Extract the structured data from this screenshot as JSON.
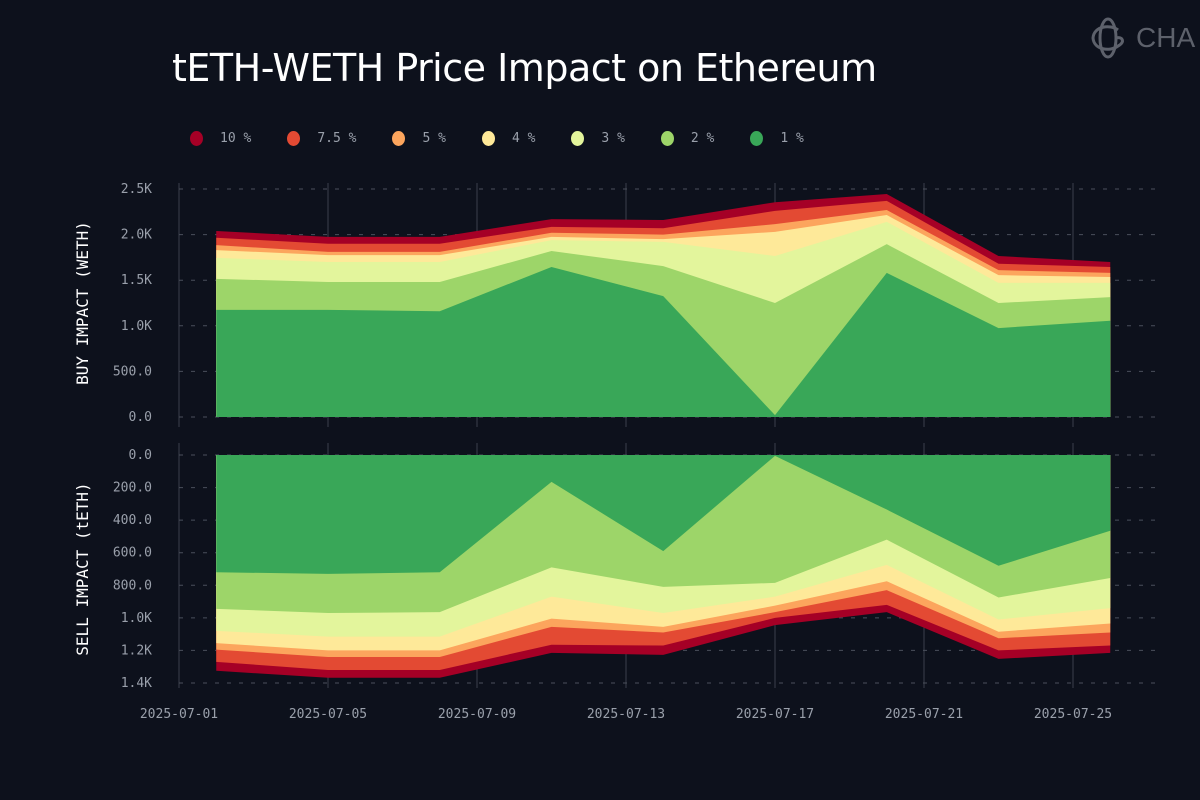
{
  "title": "tETH-WETH Price Impact on Ethereum",
  "logo_text": "CHAOS",
  "chart_data": [
    {
      "type": "area",
      "stacked": true,
      "ylabel": "BUY IMPACT (WETH)",
      "ylim": [
        0,
        2500
      ],
      "yticks": [
        "0.0",
        "500.0",
        "1.0K",
        "1.5K",
        "2.0K",
        "2.5K"
      ],
      "ytick_values": [
        0,
        500,
        1000,
        1500,
        2000,
        2500
      ],
      "x": [
        "2025-07-02",
        "2025-07-05",
        "2025-07-08",
        "2025-07-11",
        "2025-07-14",
        "2025-07-17",
        "2025-07-20",
        "2025-07-23",
        "2025-07-26"
      ],
      "value_note_cumulative": true,
      "series": [
        {
          "name": "1 %",
          "color": "#39a758",
          "values": [
            1175,
            1175,
            1160,
            1645,
            1325,
            20,
            1580,
            975,
            1055
          ]
        },
        {
          "name": "2 %",
          "color": "#9dd569",
          "values": [
            1515,
            1480,
            1480,
            1820,
            1655,
            1250,
            1895,
            1250,
            1315
          ]
        },
        {
          "name": "3 %",
          "color": "#e3f59c",
          "values": [
            1745,
            1700,
            1700,
            1940,
            1920,
            1765,
            2140,
            1470,
            1470
          ]
        },
        {
          "name": "4 %",
          "color": "#fee999",
          "values": [
            1830,
            1775,
            1775,
            1975,
            1950,
            2030,
            2215,
            1555,
            1535
          ]
        },
        {
          "name": "5 %",
          "color": "#fca55d",
          "values": [
            1885,
            1810,
            1810,
            2020,
            2000,
            2115,
            2270,
            1610,
            1580
          ]
        },
        {
          "name": "7.5 %",
          "color": "#e34a33",
          "values": [
            1965,
            1900,
            1900,
            2085,
            2070,
            2260,
            2370,
            1680,
            1645
          ]
        },
        {
          "name": "10 %",
          "color": "#a50026",
          "values": [
            2040,
            1975,
            1975,
            2170,
            2160,
            2355,
            2445,
            1765,
            1700
          ]
        }
      ],
      "grid": true
    },
    {
      "type": "area",
      "stacked": true,
      "inverted_y": true,
      "ylabel": "SELL IMPACT (tETH)",
      "ylim": [
        0,
        1400
      ],
      "yticks": [
        "0.0",
        "200.0",
        "400.0",
        "600.0",
        "800.0",
        "1.0K",
        "1.2K",
        "1.4K"
      ],
      "ytick_values": [
        0,
        200,
        400,
        600,
        800,
        1000,
        1200,
        1400
      ],
      "x": [
        "2025-07-02",
        "2025-07-05",
        "2025-07-08",
        "2025-07-11",
        "2025-07-14",
        "2025-07-17",
        "2025-07-20",
        "2025-07-23",
        "2025-07-26"
      ],
      "series": [
        {
          "name": "1 %",
          "color": "#39a758",
          "values": [
            720,
            730,
            720,
            165,
            590,
            5,
            335,
            680,
            465
          ]
        },
        {
          "name": "2 %",
          "color": "#9dd569",
          "values": [
            945,
            970,
            965,
            690,
            810,
            785,
            520,
            875,
            755
          ]
        },
        {
          "name": "3 %",
          "color": "#e3f59c",
          "values": [
            1080,
            1115,
            1115,
            870,
            970,
            870,
            675,
            1010,
            940
          ]
        },
        {
          "name": "4 %",
          "color": "#fee999",
          "values": [
            1155,
            1200,
            1200,
            1005,
            1055,
            925,
            775,
            1085,
            1035
          ]
        },
        {
          "name": "5 %",
          "color": "#fca55d",
          "values": [
            1195,
            1240,
            1240,
            1055,
            1090,
            965,
            830,
            1125,
            1090
          ]
        },
        {
          "name": "7.5 %",
          "color": "#e34a33",
          "values": [
            1270,
            1320,
            1320,
            1165,
            1170,
            1000,
            920,
            1200,
            1170
          ]
        },
        {
          "name": "10 %",
          "color": "#a50026",
          "values": [
            1325,
            1368,
            1368,
            1215,
            1227,
            1045,
            965,
            1252,
            1215
          ]
        }
      ],
      "grid": true
    }
  ],
  "xticks": [
    "2025-07-01",
    "2025-07-05",
    "2025-07-09",
    "2025-07-13",
    "2025-07-17",
    "2025-07-21",
    "2025-07-25"
  ],
  "legend": [
    {
      "label": "10 %",
      "color": "#a50026"
    },
    {
      "label": "7.5 %",
      "color": "#e34a33"
    },
    {
      "label": "5 %",
      "color": "#fca55d"
    },
    {
      "label": "4 %",
      "color": "#fee999"
    },
    {
      "label": "3 %",
      "color": "#e3f59c"
    },
    {
      "label": "2 %",
      "color": "#9dd569"
    },
    {
      "label": "1 %",
      "color": "#39a758"
    }
  ],
  "legend_placement": "top-left"
}
